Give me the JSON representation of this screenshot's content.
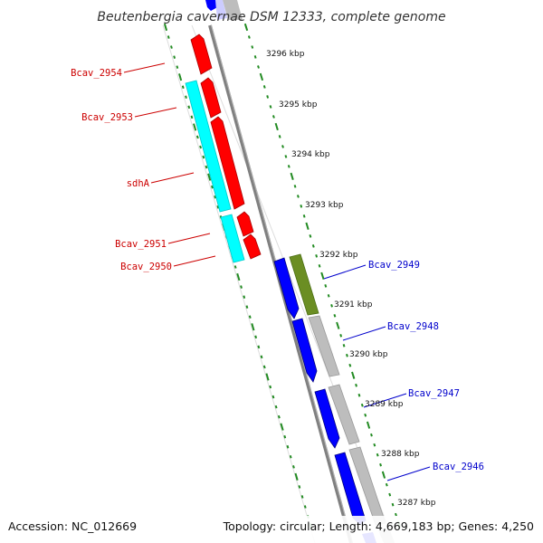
{
  "title": "Beutenbergia cavernae DSM 12333, complete genome",
  "accession_label": "Accession: NC_012669",
  "topology_label": "Topology: circular; Length: 4,669,183 bp; Genes: 4,250",
  "colors": {
    "reverse_gene": "#ff0000",
    "reverse_cds_feature": "#00ffff",
    "forward_gene": "#0000ff",
    "forward_feature": "#6b8e23",
    "forward_grey": "#bdbdbd",
    "backbone": "#808080",
    "tick": "#228b22",
    "reverse_label": "#cc0000",
    "forward_label": "#0000cc"
  },
  "kbp_ticks": [
    "3296 kbp",
    "3295 kbp",
    "3294 kbp",
    "3293 kbp",
    "3292 kbp",
    "3291 kbp",
    "3290 kbp",
    "3289 kbp",
    "3288 kbp",
    "3287 kbp"
  ],
  "reverse_gene_labels": [
    "Bcav_2954",
    "Bcav_2953",
    "sdhA",
    "Bcav_2951",
    "Bcav_2950"
  ],
  "forward_gene_labels": [
    "Bcav_2949",
    "Bcav_2948",
    "Bcav_2947",
    "Bcav_2946"
  ]
}
